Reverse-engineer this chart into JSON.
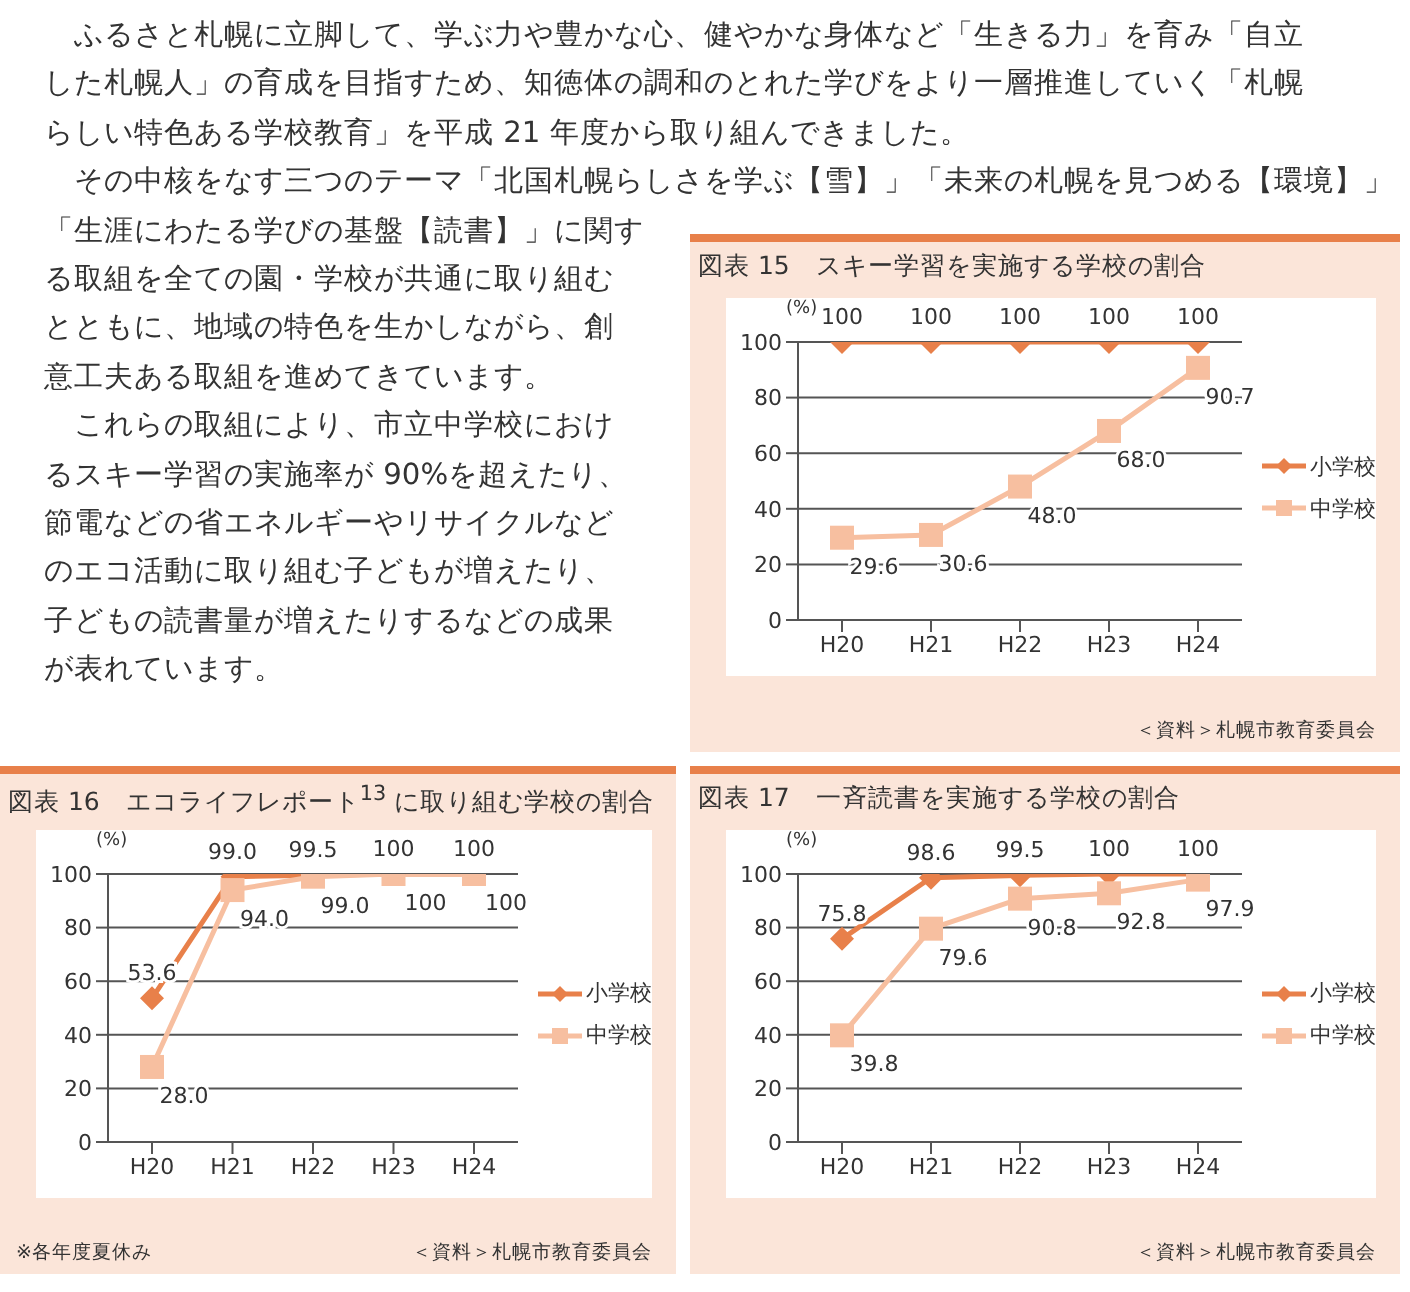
{
  "chart_data": [
    {
      "type": "other",
      "annotations": [
        "　ふるさと札幌に立脚して、学ぶ力や豊かな心、健やかな身体など「生きる力」を育み「自立",
        "した札幌人」の育成を目指すため、知徳体の調和のとれた学びをより一層推進していく「札幌",
        "らしい特色ある学校教育」を平成 21 年度から取り組んできました。",
        "　その中核をなす三つのテーマ「北国札幌らしさを学ぶ【雪】」「未来の札幌を見つめる【環境】」",
        "「生涯にわたる学びの基盤【読書】」に関す",
        "る取組を全ての園・学校が共通に取り組む",
        "とともに、地域の特色を生かしながら、創",
        "意工夫ある取組を進めてきています。",
        "　これらの取組により、市立中学校におけ",
        "るスキー学習の実施率が 90%を超えたり、",
        "節電などの省エネルギーやリサイクルなど",
        "のエコ活動に取り組む子どもが増えたり、",
        "子どもの読書量が増えたりするなどの成果",
        "が表れています。"
      ]
    },
    {
      "type": "line",
      "title": "図表 15　スキー学習を実施する学校の割合",
      "ylabel": "(%)",
      "categories": [
        "H20",
        "H21",
        "H22",
        "H23",
        "H24"
      ],
      "ylim": [
        0,
        100
      ],
      "yticks": [
        0,
        20,
        40,
        60,
        80,
        100
      ],
      "grid": "y",
      "legend": "right",
      "annotations": [
        "＜資料＞札幌市教育委員会"
      ],
      "series": [
        {
          "name": "小学校",
          "color": "#e8804a",
          "marker": "diamond",
          "values": [
            100,
            100,
            100,
            100,
            100
          ],
          "value_labels": [
            "100",
            "100",
            "100",
            "100",
            "100"
          ]
        },
        {
          "name": "中学校",
          "color": "#f7bfa0",
          "marker": "square",
          "values": [
            29.6,
            30.6,
            48.0,
            68.0,
            90.7
          ],
          "value_labels": [
            "29.6",
            "30.6",
            "48.0",
            "68.0",
            "90.7"
          ]
        }
      ]
    },
    {
      "type": "line",
      "title": "図表 16　エコライフレポート$^{13}$ に取り組む学校の割合",
      "ylabel": "(%)",
      "categories": [
        "H20",
        "H21",
        "H22",
        "H23",
        "H24"
      ],
      "ylim": [
        0,
        100
      ],
      "yticks": [
        0,
        20,
        40,
        60,
        80,
        100
      ],
      "grid": "y",
      "legend": "right",
      "annotations": [
        "※各年度夏休み",
        "＜資料＞札幌市教育委員会"
      ],
      "series": [
        {
          "name": "小学校",
          "color": "#e8804a",
          "marker": "diamond",
          "values": [
            53.6,
            99.0,
            99.5,
            100,
            100
          ],
          "value_labels": [
            "53.6",
            "99.0",
            "99.5",
            "100",
            "100"
          ]
        },
        {
          "name": "中学校",
          "color": "#f7bfa0",
          "marker": "square",
          "values": [
            28.0,
            94.0,
            99.0,
            100,
            100
          ],
          "value_labels": [
            "28.0",
            "94.0",
            "99.0",
            "100",
            "100"
          ]
        }
      ]
    },
    {
      "type": "line",
      "title": "図表 17　一斉読書を実施する学校の割合",
      "ylabel": "(%)",
      "categories": [
        "H20",
        "H21",
        "H22",
        "H23",
        "H24"
      ],
      "ylim": [
        0,
        100
      ],
      "yticks": [
        0,
        20,
        40,
        60,
        80,
        100
      ],
      "grid": "y",
      "legend": "right",
      "annotations": [
        "＜資料＞札幌市教育委員会"
      ],
      "series": [
        {
          "name": "小学校",
          "color": "#e8804a",
          "marker": "diamond",
          "values": [
            75.8,
            98.6,
            99.5,
            100,
            100
          ],
          "value_labels": [
            "75.8",
            "98.6",
            "99.5",
            "100",
            "100"
          ]
        },
        {
          "name": "中学校",
          "color": "#f7bfa0",
          "marker": "square",
          "values": [
            39.8,
            79.6,
            90.8,
            92.8,
            97.9
          ],
          "value_labels": [
            "39.8",
            "79.6",
            "90.8",
            "92.8",
            "97.9"
          ]
        }
      ]
    }
  ]
}
